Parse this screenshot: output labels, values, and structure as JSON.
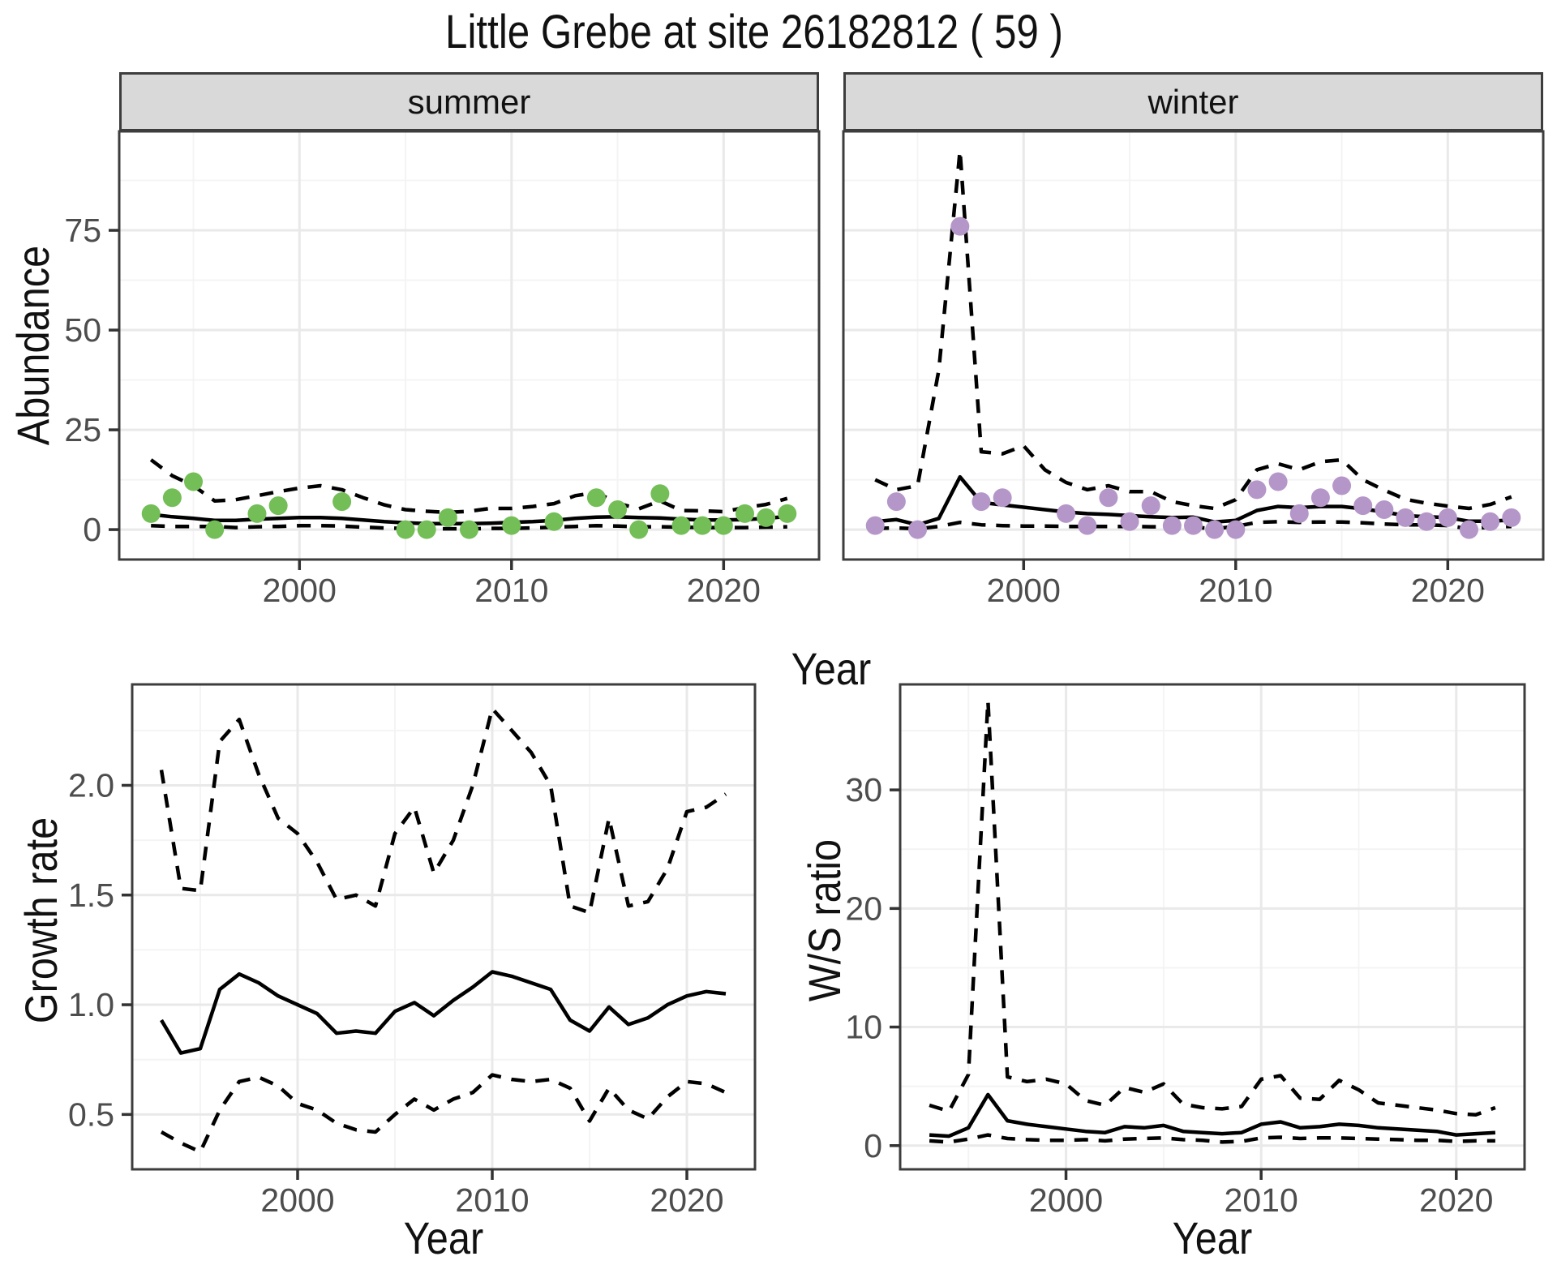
{
  "title": "Little Grebe at site 26182812 ( 59 )",
  "top_axis": {
    "xlabel": "Year",
    "ylabel": "Abundance"
  },
  "colors": {
    "summer_point": "#73BE56",
    "winter_point": "#B596C9",
    "line": "#000000",
    "grid_major": "#e9e9e9",
    "grid_minor": "#f4f4f4",
    "panel_border": "#3d3d3d",
    "tick_mark": "#333333",
    "tick_label": "#4d4d4d",
    "strip_bg": "#d9d9d9"
  },
  "chart_data": [
    {
      "id": "abundance-summer",
      "type": "line",
      "facet_label": "summer",
      "xlabel": "Year",
      "ylabel": "Abundance",
      "x_domain": [
        1991.5,
        2024.5
      ],
      "y_domain": [
        -7.5,
        99.8
      ],
      "x_ticks": [
        2000,
        2010,
        2020
      ],
      "x_tick_labels": [
        "2000",
        "2010",
        "2020"
      ],
      "x_minor": [
        1995,
        2005,
        2015
      ],
      "y_ticks": [
        0,
        25,
        50,
        75
      ],
      "y_tick_labels": [
        "0",
        "25",
        "50",
        "75"
      ],
      "y_minor": [
        12.5,
        37.5,
        62.5,
        87.5
      ],
      "series": [
        {
          "name": "ci-upper",
          "style": "dashed",
          "x0": 1993,
          "values": [
            17.5,
            13.5,
            11.0,
            7.2,
            7.5,
            8.5,
            9.5,
            10.4,
            11.0,
            10.0,
            8.0,
            6.2,
            5.0,
            4.6,
            4.3,
            4.6,
            5.3,
            5.3,
            5.8,
            6.5,
            8.5,
            9.3,
            6.6,
            5.2,
            7.2,
            4.8,
            4.7,
            4.5,
            5.5,
            6.3,
            7.8
          ]
        },
        {
          "name": "fit",
          "style": "solid",
          "x0": 1993,
          "values": [
            3.8,
            3.2,
            2.8,
            2.3,
            2.3,
            2.6,
            2.8,
            3.0,
            3.0,
            2.8,
            2.4,
            2.0,
            1.7,
            1.5,
            1.5,
            1.5,
            1.6,
            1.8,
            2.0,
            2.3,
            2.8,
            3.1,
            3.2,
            3.0,
            2.9,
            2.6,
            2.4,
            2.4,
            2.5,
            2.8,
            3.3
          ]
        },
        {
          "name": "ci-lower",
          "style": "dashed",
          "x0": 1993,
          "values": [
            1.0,
            0.8,
            0.8,
            0.8,
            0.5,
            0.7,
            0.8,
            1.0,
            1.0,
            0.9,
            0.6,
            0.4,
            0.3,
            0.2,
            0.2,
            0.2,
            0.3,
            0.3,
            0.4,
            0.6,
            0.8,
            1.0,
            0.9,
            0.7,
            0.7,
            0.6,
            0.5,
            0.5,
            0.5,
            0.6,
            0.7
          ]
        },
        {
          "name": "observed-counts",
          "style": "points",
          "color_key": "summer_point",
          "points": [
            [
              1993,
              4
            ],
            [
              1994,
              8
            ],
            [
              1995,
              12
            ],
            [
              1996,
              0
            ],
            [
              1998,
              4
            ],
            [
              1999,
              6
            ],
            [
              2002,
              7
            ],
            [
              2005,
              0
            ],
            [
              2006,
              0
            ],
            [
              2007,
              3
            ],
            [
              2008,
              0
            ],
            [
              2010,
              1
            ],
            [
              2012,
              2
            ],
            [
              2014,
              8
            ],
            [
              2015,
              5
            ],
            [
              2016,
              0
            ],
            [
              2017,
              9
            ],
            [
              2018,
              1
            ],
            [
              2019,
              1
            ],
            [
              2020,
              1
            ],
            [
              2021,
              4
            ],
            [
              2022,
              3
            ],
            [
              2023,
              4
            ]
          ]
        }
      ]
    },
    {
      "id": "abundance-winter",
      "type": "line",
      "facet_label": "winter",
      "xlabel": "Year",
      "ylabel": "Abundance",
      "x_domain": [
        1991.5,
        2024.5
      ],
      "y_domain": [
        -7.5,
        99.8
      ],
      "x_ticks": [
        2000,
        2010,
        2020
      ],
      "x_tick_labels": [
        "2000",
        "2010",
        "2020"
      ],
      "x_minor": [
        1995,
        2005,
        2015
      ],
      "y_ticks": [
        0,
        25,
        50,
        75
      ],
      "y_tick_labels": [
        "0",
        "25",
        "50",
        "75"
      ],
      "y_minor": [
        12.5,
        37.5,
        62.5,
        87.5
      ],
      "series": [
        {
          "name": "ci-upper",
          "style": "dashed",
          "x0": 1993,
          "values": [
            12.5,
            10.0,
            11.0,
            40.0,
            95.0,
            19.5,
            19.0,
            21.0,
            15.0,
            11.8,
            10.0,
            11.0,
            9.5,
            9.5,
            7.0,
            6.0,
            5.3,
            7.5,
            15.0,
            16.5,
            15.0,
            17.0,
            17.5,
            12.5,
            9.9,
            7.6,
            6.6,
            5.9,
            5.3,
            6.3,
            8.2
          ]
        },
        {
          "name": "fit",
          "style": "solid",
          "x0": 1993,
          "values": [
            2.0,
            2.5,
            1.2,
            2.8,
            13.2,
            6.8,
            6.2,
            5.6,
            5.0,
            4.4,
            4.0,
            3.8,
            3.5,
            3.2,
            3.0,
            3.1,
            1.9,
            2.3,
            4.8,
            5.8,
            5.5,
            5.8,
            5.8,
            5.2,
            4.4,
            3.5,
            3.2,
            3.0,
            2.1,
            2.1,
            2.4
          ]
        },
        {
          "name": "ci-lower",
          "style": "dashed",
          "x0": 1993,
          "values": [
            0.3,
            0.4,
            0.2,
            0.8,
            1.8,
            1.2,
            1.0,
            0.9,
            0.9,
            0.8,
            0.8,
            0.8,
            0.8,
            0.7,
            0.7,
            0.6,
            0.2,
            0.8,
            1.8,
            2.0,
            1.8,
            1.9,
            1.9,
            1.7,
            1.4,
            1.2,
            1.2,
            1.0,
            0.2,
            0.6,
            0.8
          ]
        },
        {
          "name": "observed-counts",
          "style": "points",
          "color_key": "winter_point",
          "points": [
            [
              1993,
              1
            ],
            [
              1994,
              7
            ],
            [
              1995,
              0
            ],
            [
              1997,
              76
            ],
            [
              1998,
              7
            ],
            [
              1999,
              8
            ],
            [
              2002,
              4
            ],
            [
              2003,
              1
            ],
            [
              2004,
              8
            ],
            [
              2005,
              2
            ],
            [
              2006,
              6
            ],
            [
              2007,
              1
            ],
            [
              2008,
              1
            ],
            [
              2009,
              0
            ],
            [
              2010,
              0
            ],
            [
              2011,
              10
            ],
            [
              2012,
              12
            ],
            [
              2013,
              4
            ],
            [
              2014,
              8
            ],
            [
              2015,
              11
            ],
            [
              2016,
              6
            ],
            [
              2017,
              5
            ],
            [
              2018,
              3
            ],
            [
              2019,
              2
            ],
            [
              2020,
              3
            ],
            [
              2021,
              0
            ],
            [
              2022,
              2
            ],
            [
              2023,
              3
            ]
          ]
        }
      ]
    },
    {
      "id": "growth-rate",
      "type": "line",
      "facet_label": "",
      "xlabel": "Year",
      "ylabel": "Growth rate",
      "x_domain": [
        1991.5,
        2023.5
      ],
      "y_domain": [
        0.25,
        2.46
      ],
      "x_ticks": [
        2000,
        2010,
        2020
      ],
      "x_tick_labels": [
        "2000",
        "2010",
        "2020"
      ],
      "x_minor": [
        1995,
        2005,
        2015
      ],
      "y_ticks": [
        0.5,
        1.0,
        1.5,
        2.0
      ],
      "y_tick_labels": [
        "0.5",
        "1.0",
        "1.5",
        "2.0"
      ],
      "y_minor": [
        0.75,
        1.25,
        1.75,
        2.25
      ],
      "series": [
        {
          "name": "ci-upper",
          "style": "dashed",
          "x0": 1993,
          "values": [
            2.07,
            1.53,
            1.52,
            2.2,
            2.3,
            2.05,
            1.85,
            1.78,
            1.65,
            1.48,
            1.5,
            1.45,
            1.78,
            1.9,
            1.6,
            1.75,
            2.0,
            2.35,
            2.25,
            2.15,
            2.0,
            1.45,
            1.42,
            1.85,
            1.45,
            1.47,
            1.62,
            1.88,
            1.9,
            1.96
          ]
        },
        {
          "name": "fit",
          "style": "solid",
          "x0": 1993,
          "values": [
            0.93,
            0.78,
            0.8,
            1.07,
            1.14,
            1.1,
            1.04,
            1.0,
            0.96,
            0.87,
            0.88,
            0.87,
            0.97,
            1.01,
            0.95,
            1.02,
            1.08,
            1.15,
            1.13,
            1.1,
            1.07,
            0.93,
            0.88,
            0.99,
            0.91,
            0.94,
            1.0,
            1.04,
            1.06,
            1.05
          ]
        },
        {
          "name": "ci-lower",
          "style": "dashed",
          "x0": 1993,
          "values": [
            0.42,
            0.37,
            0.33,
            0.52,
            0.65,
            0.67,
            0.63,
            0.55,
            0.52,
            0.46,
            0.43,
            0.42,
            0.5,
            0.57,
            0.52,
            0.57,
            0.6,
            0.68,
            0.66,
            0.65,
            0.66,
            0.62,
            0.47,
            0.62,
            0.52,
            0.48,
            0.58,
            0.65,
            0.64,
            0.6
          ]
        }
      ]
    },
    {
      "id": "ws-ratio",
      "type": "line",
      "facet_label": "",
      "xlabel": "Year",
      "ylabel": "W/S ratio",
      "x_domain": [
        1991.5,
        2023.5
      ],
      "y_domain": [
        -2.0,
        38.9
      ],
      "x_ticks": [
        2000,
        2010,
        2020
      ],
      "x_tick_labels": [
        "2000",
        "2010",
        "2020"
      ],
      "x_minor": [
        1995,
        2005,
        2015
      ],
      "y_ticks": [
        0,
        10,
        20,
        30
      ],
      "y_tick_labels": [
        "0",
        "10",
        "20",
        "30"
      ],
      "y_minor": [
        5,
        15,
        25,
        35
      ],
      "series": [
        {
          "name": "ci-upper",
          "style": "dashed",
          "x0": 1993,
          "values": [
            3.4,
            2.9,
            6.0,
            37.5,
            5.8,
            5.4,
            5.6,
            5.2,
            3.8,
            3.4,
            4.9,
            4.5,
            5.2,
            3.5,
            3.2,
            3.1,
            3.3,
            5.6,
            5.9,
            4.0,
            3.9,
            5.5,
            4.7,
            3.6,
            3.4,
            3.2,
            3.0,
            2.7,
            2.6,
            3.2
          ]
        },
        {
          "name": "fit",
          "style": "solid",
          "x0": 1993,
          "values": [
            0.9,
            0.8,
            1.5,
            4.3,
            2.1,
            1.8,
            1.6,
            1.4,
            1.2,
            1.1,
            1.6,
            1.5,
            1.7,
            1.2,
            1.1,
            1.0,
            1.1,
            1.8,
            2.0,
            1.5,
            1.6,
            1.8,
            1.7,
            1.5,
            1.4,
            1.3,
            1.2,
            0.9,
            1.0,
            1.1
          ]
        },
        {
          "name": "ci-lower",
          "style": "dashed",
          "x0": 1993,
          "values": [
            0.4,
            0.3,
            0.55,
            0.9,
            0.6,
            0.5,
            0.45,
            0.45,
            0.5,
            0.4,
            0.55,
            0.6,
            0.65,
            0.5,
            0.45,
            0.3,
            0.35,
            0.65,
            0.7,
            0.6,
            0.65,
            0.65,
            0.6,
            0.55,
            0.5,
            0.45,
            0.45,
            0.35,
            0.4,
            0.4
          ]
        }
      ]
    }
  ]
}
